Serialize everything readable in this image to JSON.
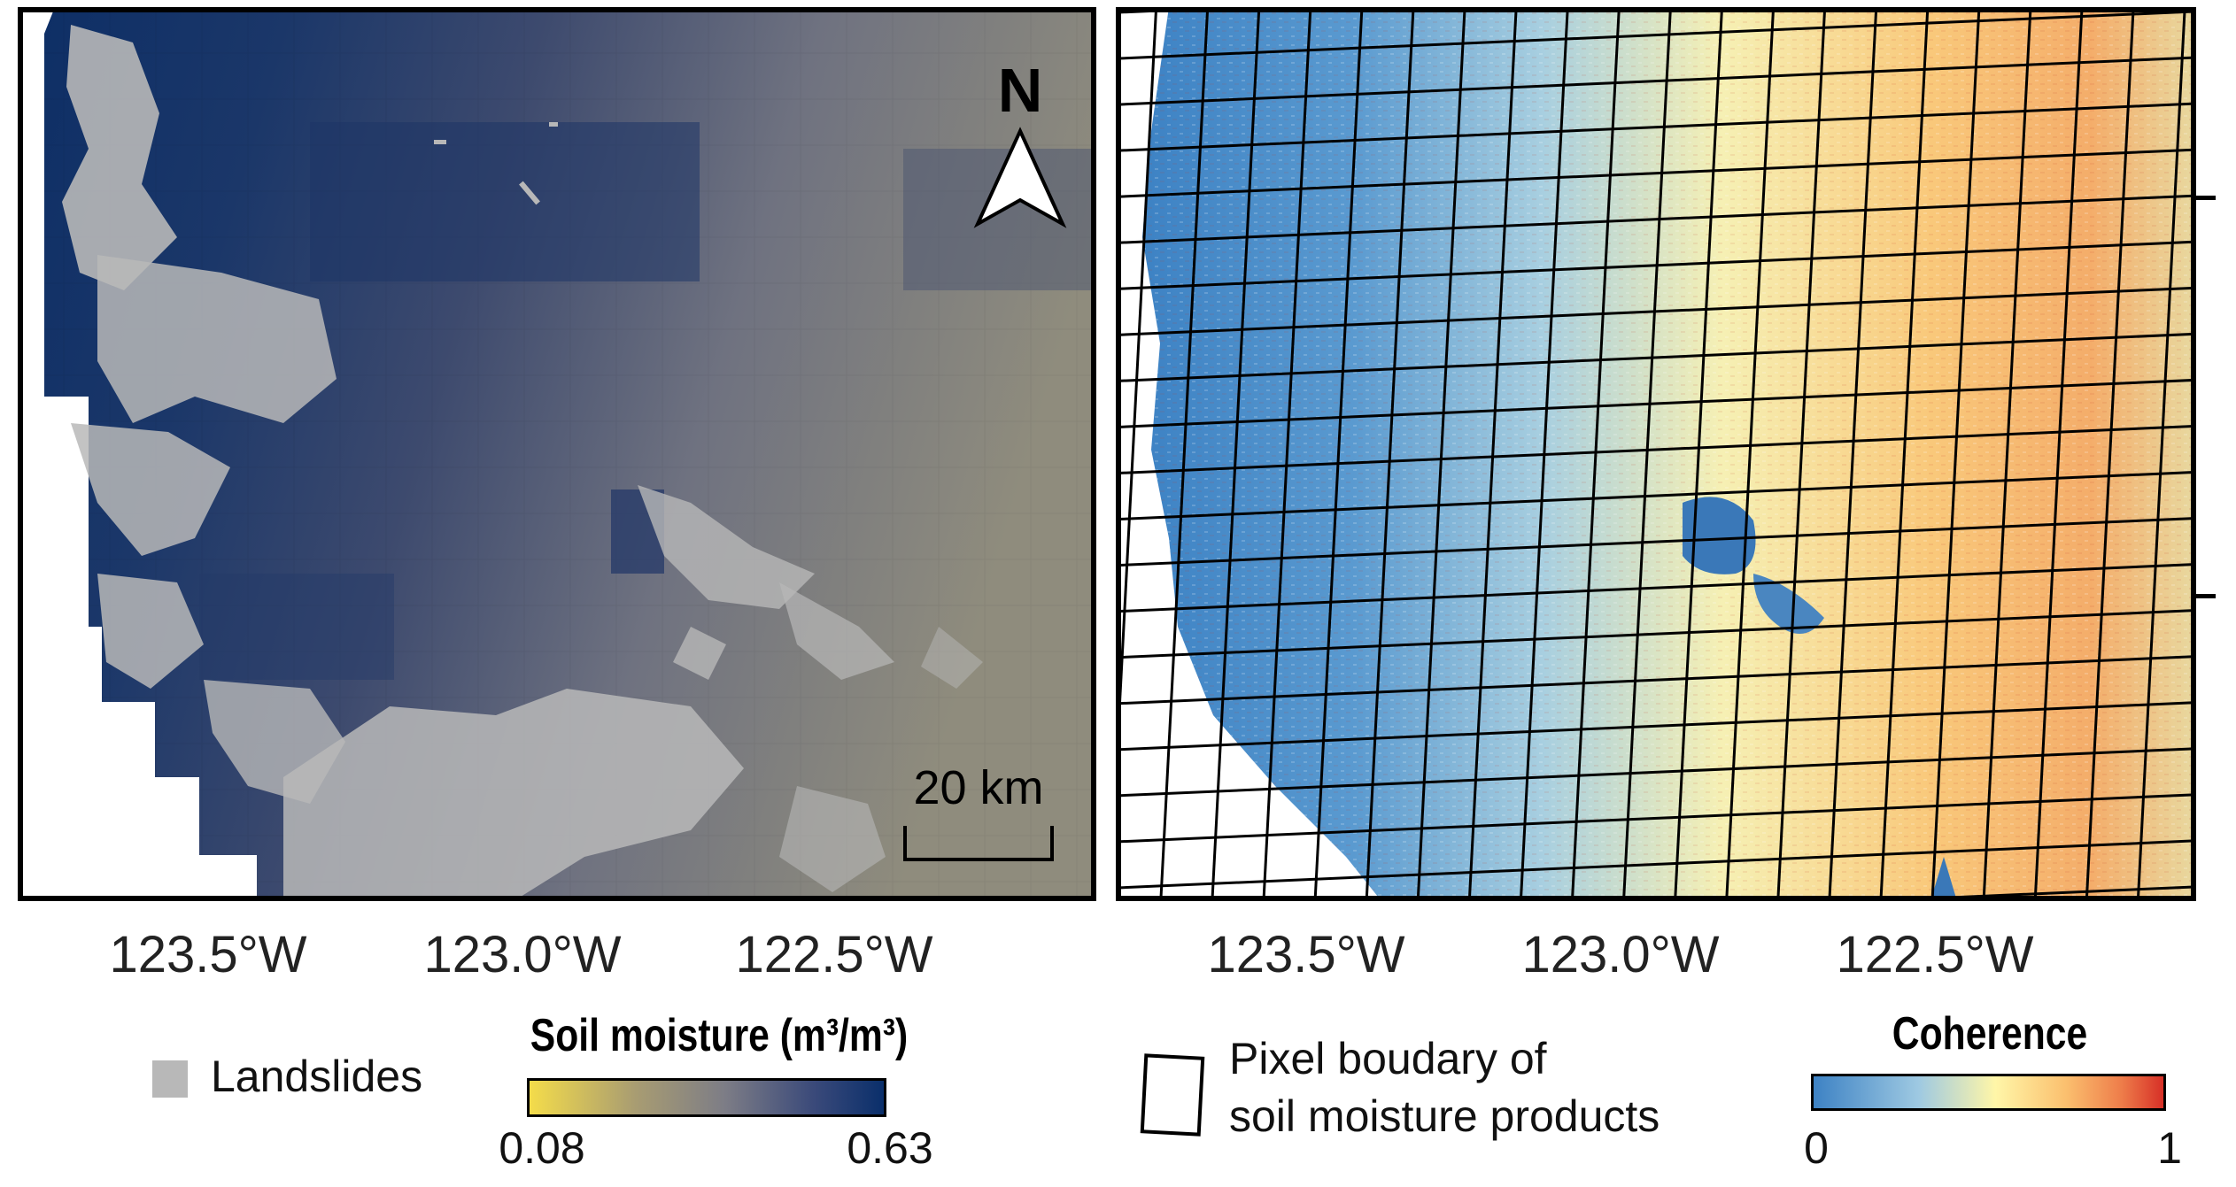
{
  "left_panel": {
    "north_label": "N",
    "scale_bar_label": "20 km",
    "x_ticks": [
      "123.5°W",
      "123.0°W",
      "122.5°W"
    ],
    "colors": {
      "landslides": "#b8b8b8",
      "moisture_low": "#f4dc4a",
      "moisture_mid": "#7d7d86",
      "moisture_high": "#0a2f6b"
    }
  },
  "right_panel": {
    "x_ticks": [
      "123.5°W",
      "123.0°W",
      "122.5°W"
    ],
    "colors": {
      "coherence_low": "#3d7fc1",
      "coherence_mid": "#fff6a8",
      "coherence_high": "#d73027"
    }
  },
  "legend_left": {
    "landslides_label": "Landslides",
    "colorbar_title": "Soil moisture (m³/m³)",
    "colorbar_min": "0.08",
    "colorbar_max": "0.63"
  },
  "legend_right": {
    "pixel_boundary_label_line1": "Pixel boudary of",
    "pixel_boundary_label_line2": "soil moisture products",
    "colorbar_title": "Coherence",
    "colorbar_min": "0",
    "colorbar_max": "1"
  }
}
